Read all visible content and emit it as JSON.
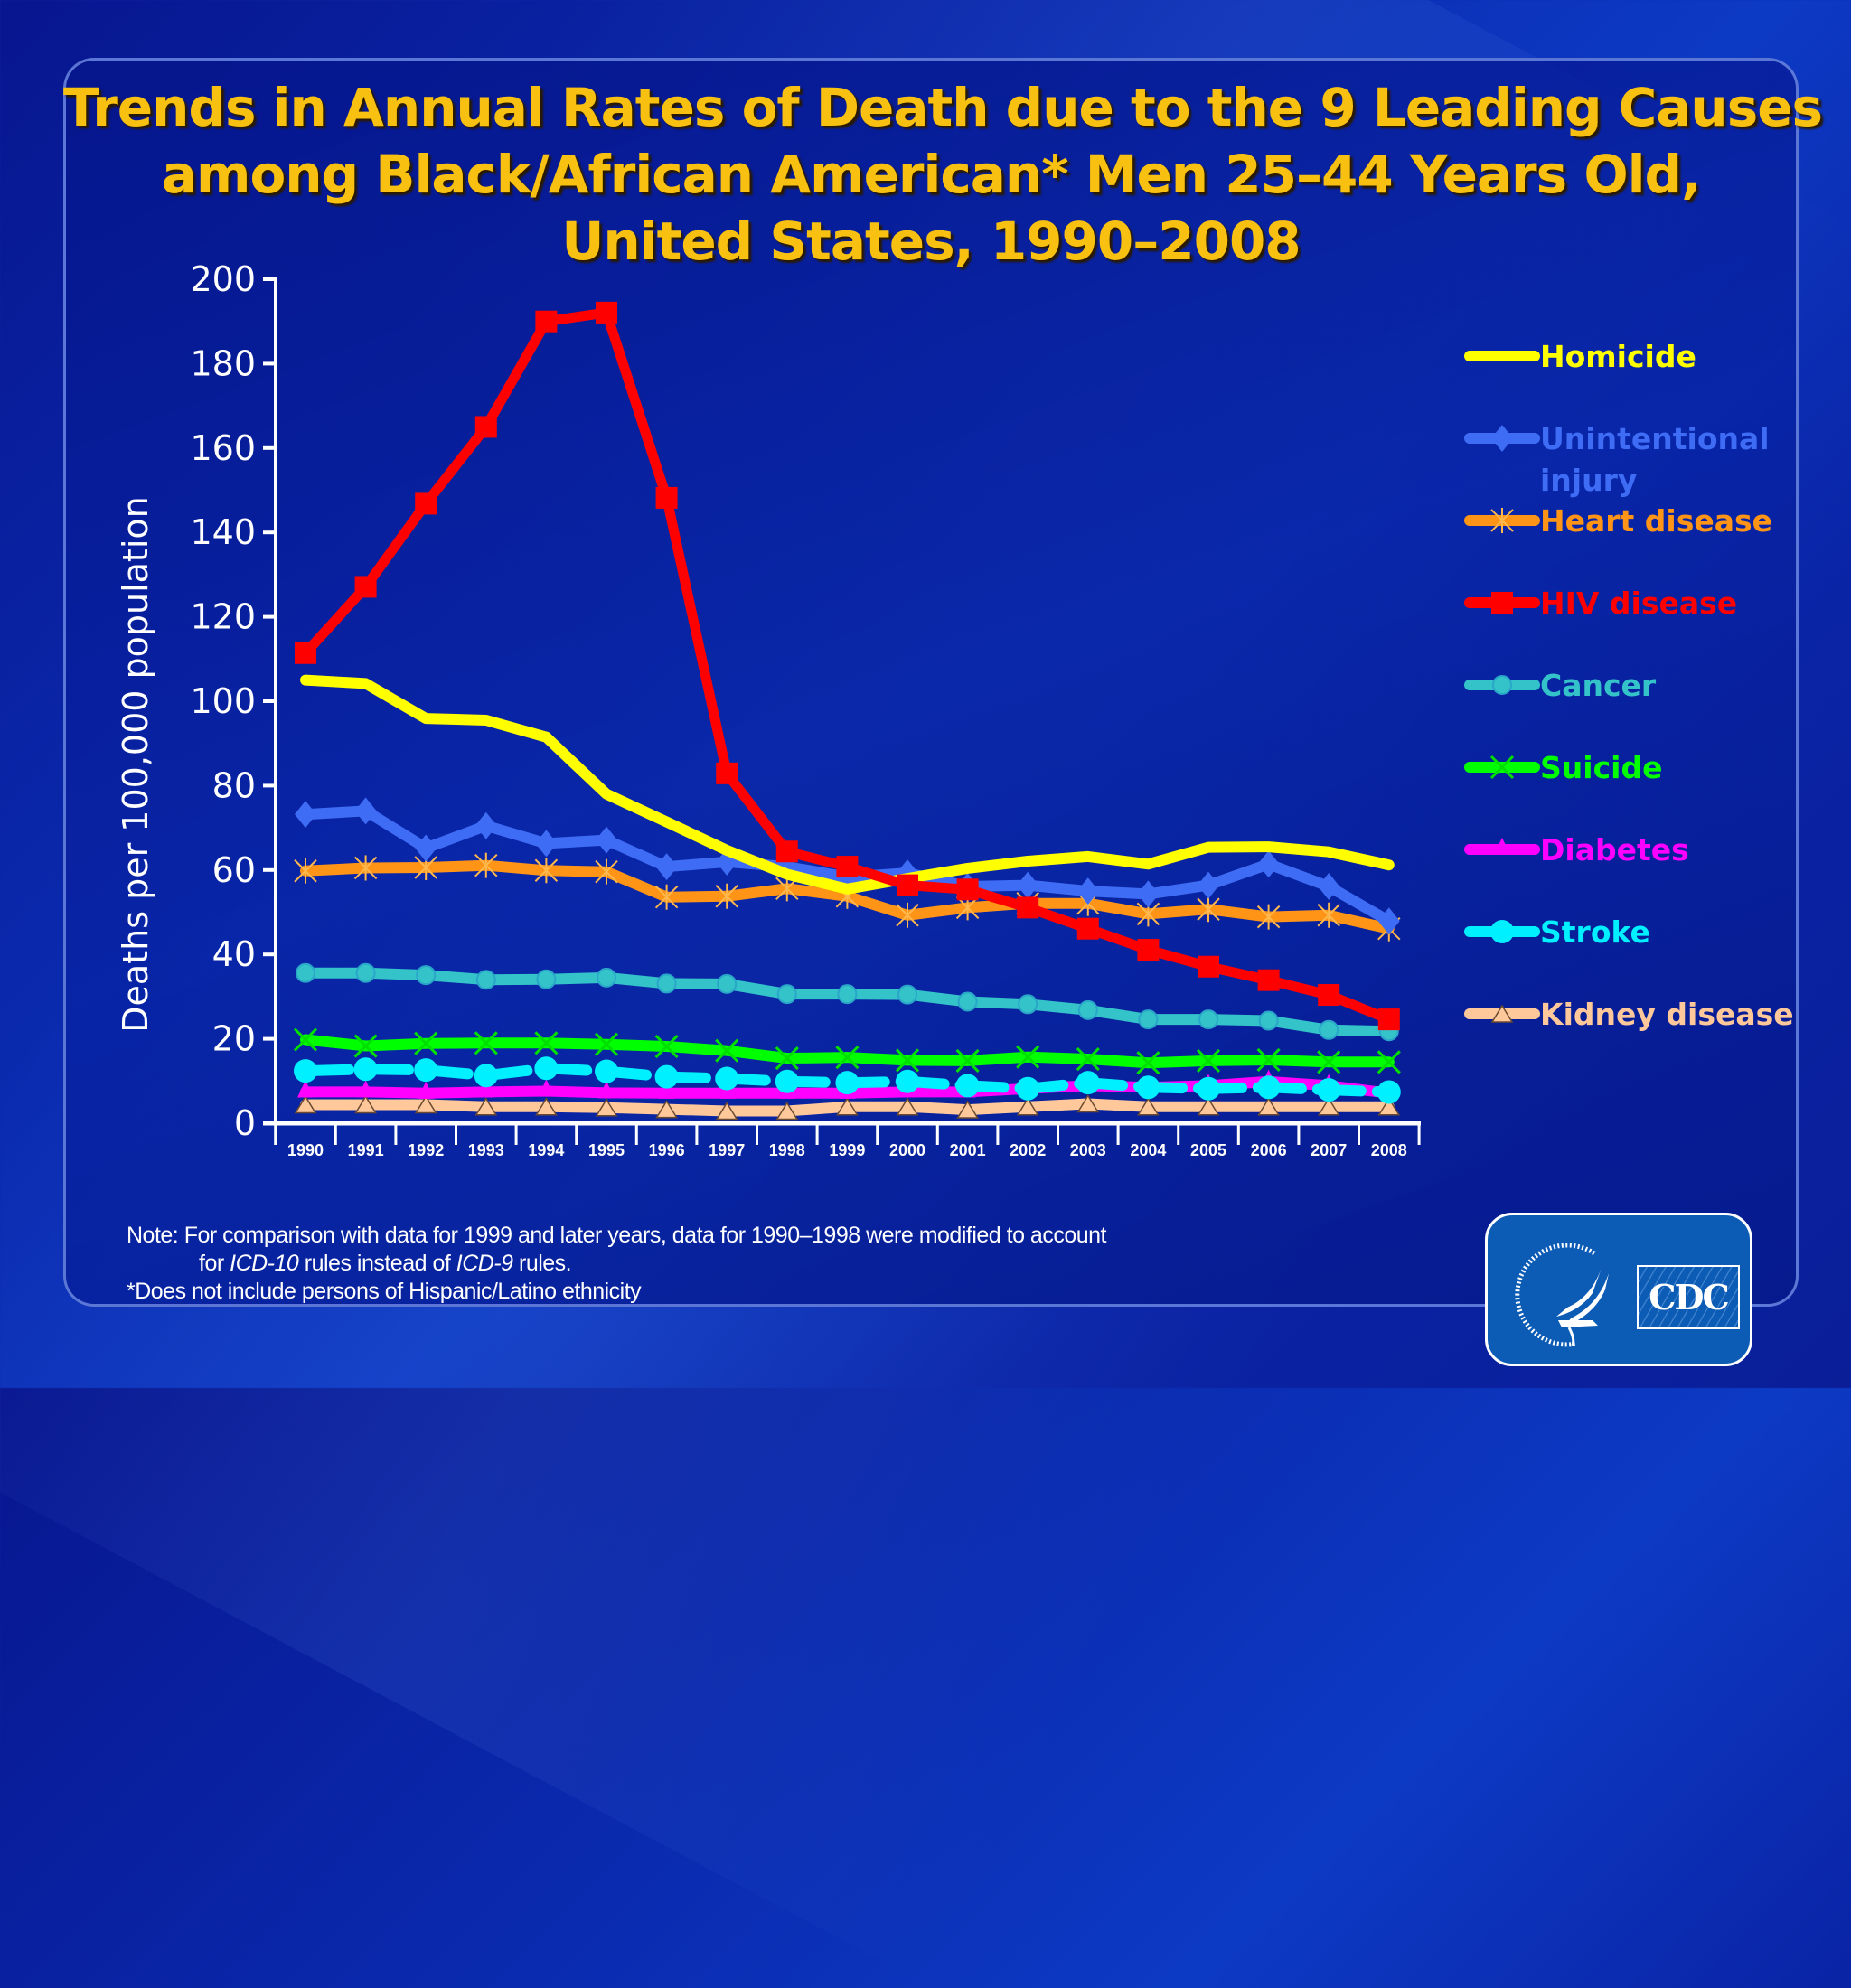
{
  "title": {
    "line1": "Trends in Annual Rates of Death due to the 9 Leading Causes",
    "line2": "among Black/African American* Men 25–44 Years Old,",
    "line3": "United States, 1990–2008"
  },
  "notes": {
    "line1": "Note: For comparison with data for 1999 and later years, data for 1990–1998 were modified to account",
    "line2_pre": "for ",
    "line2_icd10": "ICD-10",
    "line2_mid": " rules instead of ",
    "line2_icd9": "ICD-9",
    "line2_post": " rules.",
    "line3": "*Does not include persons of Hispanic/Latino ethnicity"
  },
  "logo": {
    "cdc_text": "CDC",
    "seal_icon": "hhs-eagle-seal-icon"
  },
  "chart_data": {
    "type": "line",
    "title": "Trends in Annual Rates of Death due to the 9 Leading Causes among Black/African American* Men 25–44 Years Old, United States, 1990–2008",
    "xlabel": "",
    "ylabel": "Deaths per 100,000 population",
    "ylim": [
      0,
      200
    ],
    "yticks": [
      0,
      20,
      40,
      60,
      80,
      100,
      120,
      140,
      160,
      180,
      200
    ],
    "grid": false,
    "legend_position": "right",
    "categories": [
      "1990",
      "1991",
      "1992",
      "1993",
      "1994",
      "1995",
      "1996",
      "1997",
      "1998",
      "1999",
      "2000",
      "2001",
      "2002",
      "2003",
      "2004",
      "2005",
      "2006",
      "2007",
      "2008"
    ],
    "series": [
      {
        "name": "Homicide",
        "color": "#ffff00",
        "marker": "none",
        "values": [
          105.0,
          104.2,
          95.9,
          95.5,
          91.5,
          78.0,
          71.4,
          64.7,
          59.0,
          55.5,
          58.0,
          60.4,
          62.1,
          63.2,
          61.4,
          65.4,
          65.5,
          64.3,
          61.2
        ]
      },
      {
        "name": "Unintentional injury",
        "color": "#3f6cf5",
        "marker": "diamond",
        "values": [
          73.2,
          74.0,
          65.2,
          70.5,
          66.3,
          67.1,
          60.8,
          61.9,
          60.8,
          58.3,
          59.3,
          56.1,
          56.4,
          55.0,
          54.3,
          56.4,
          61.4,
          56.1,
          47.9
        ]
      },
      {
        "name": "Heart disease",
        "color": "#ff9416",
        "marker": "asterisk",
        "values": [
          59.8,
          60.5,
          60.6,
          61.1,
          59.9,
          59.6,
          53.6,
          53.8,
          55.6,
          53.8,
          49.3,
          51.1,
          52.1,
          52.1,
          49.6,
          50.7,
          48.9,
          49.3,
          46.1
        ]
      },
      {
        "name": "HIV disease",
        "color": "#ff0000",
        "marker": "square",
        "values": [
          111.4,
          127.1,
          146.8,
          165.0,
          190.0,
          192.1,
          148.2,
          82.9,
          64.4,
          60.8,
          56.4,
          55.4,
          51.1,
          46.1,
          41.1,
          37.1,
          33.9,
          30.4,
          24.6
        ]
      },
      {
        "name": "Cancer",
        "color": "#33c3c9",
        "marker": "circle",
        "values": [
          35.6,
          35.6,
          35.1,
          34.0,
          34.1,
          34.5,
          33.1,
          33.0,
          30.6,
          30.6,
          30.5,
          28.8,
          28.2,
          26.8,
          24.6,
          24.6,
          24.3,
          22.1,
          21.8
        ]
      },
      {
        "name": "Suicide",
        "color": "#00ff00",
        "marker": "x",
        "values": [
          19.8,
          18.3,
          18.9,
          19.0,
          19.0,
          18.7,
          18.2,
          17.2,
          15.4,
          15.6,
          14.9,
          14.8,
          15.7,
          15.2,
          14.3,
          14.8,
          15.0,
          14.5,
          14.5
        ]
      },
      {
        "name": "Diabetes",
        "color": "#ff00ff",
        "marker": "triangle",
        "values": [
          7.4,
          7.4,
          7.1,
          7.4,
          7.6,
          7.2,
          7.1,
          7.1,
          7.1,
          7.1,
          7.4,
          7.4,
          8.2,
          8.9,
          8.5,
          8.9,
          9.9,
          8.9,
          7.1
        ]
      },
      {
        "name": "Stroke",
        "color": "#00f0ff",
        "marker": "filled-circle",
        "values": [
          12.4,
          12.8,
          12.6,
          11.3,
          13.0,
          12.3,
          11.0,
          10.6,
          9.9,
          9.6,
          9.9,
          8.9,
          8.2,
          9.6,
          8.5,
          8.2,
          8.5,
          7.9,
          7.4
        ]
      },
      {
        "name": "Kidney disease",
        "color": "#ffc89a",
        "marker": "open-triangle",
        "values": [
          4.4,
          4.4,
          4.4,
          3.9,
          3.9,
          3.7,
          3.3,
          2.9,
          2.9,
          3.9,
          3.9,
          3.2,
          3.9,
          4.6,
          3.9,
          3.9,
          3.9,
          3.9,
          3.9
        ]
      }
    ],
    "legend": [
      {
        "label": "Homicide",
        "lines": [
          "Homicide"
        ]
      },
      {
        "label": "Unintentional injury",
        "lines": [
          "Unintentional",
          "injury"
        ]
      },
      {
        "label": "Heart disease",
        "lines": [
          "Heart disease"
        ]
      },
      {
        "label": "HIV disease",
        "lines": [
          "HIV disease"
        ]
      },
      {
        "label": "Cancer",
        "lines": [
          "Cancer"
        ]
      },
      {
        "label": "Suicide",
        "lines": [
          "Suicide"
        ]
      },
      {
        "label": "Diabetes",
        "lines": [
          "Diabetes"
        ]
      },
      {
        "label": "Stroke",
        "lines": [
          "Stroke"
        ]
      },
      {
        "label": "Kidney disease",
        "lines": [
          "Kidney disease"
        ]
      }
    ]
  }
}
